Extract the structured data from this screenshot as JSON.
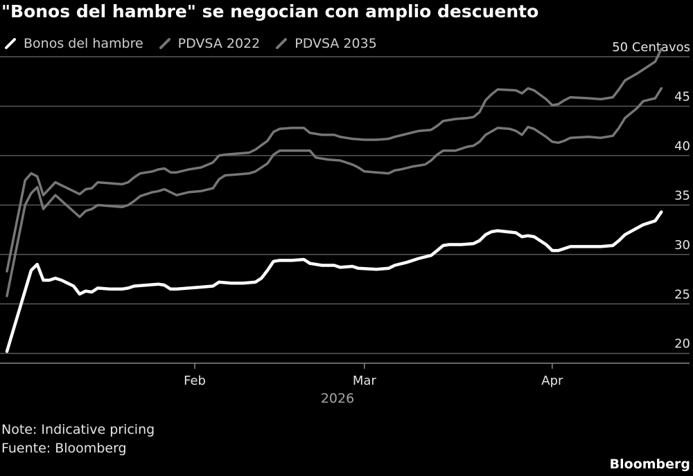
{
  "title": "\"Bonos del hambre\" se negocian con amplio descuento",
  "legend": [
    {
      "label": "Bonos del hambre",
      "color": "#ffffff"
    },
    {
      "label": "PDVSA 2022",
      "color": "#777777"
    },
    {
      "label": "PDVSA 2035",
      "color": "#777777"
    }
  ],
  "note": "Note: Indicative pricing",
  "source": "Fuente: Bloomberg",
  "brand": "Bloomberg",
  "chart_data": {
    "type": "line",
    "y_unit_label": "50 Centavos",
    "y_ticks": [
      20,
      25,
      30,
      35,
      40,
      45,
      50
    ],
    "ylim": [
      19,
      50
    ],
    "x_tick_labels": [
      "Feb",
      "Mar",
      "Apr"
    ],
    "x_tick_days": [
      31,
      59,
      90
    ],
    "year_label": "2026",
    "xlim": [
      0,
      109
    ],
    "grid": true,
    "legend_position": "top-left",
    "series": [
      {
        "name": "Bonos del hambre",
        "color": "#ffffff",
        "points": [
          [
            0,
            20.2
          ],
          [
            4,
            28.4
          ],
          [
            5,
            29.0
          ],
          [
            6,
            27.4
          ],
          [
            7,
            27.4
          ],
          [
            8,
            27.6
          ],
          [
            9,
            27.4
          ],
          [
            10,
            27.1
          ],
          [
            11,
            26.8
          ],
          [
            12,
            26.0
          ],
          [
            13,
            26.3
          ],
          [
            14,
            26.2
          ],
          [
            15,
            26.6
          ],
          [
            17,
            26.5
          ],
          [
            19,
            26.5
          ],
          [
            20,
            26.6
          ],
          [
            21,
            26.8
          ],
          [
            23,
            26.9
          ],
          [
            25,
            27.0
          ],
          [
            26,
            26.9
          ],
          [
            27,
            26.5
          ],
          [
            28,
            26.5
          ],
          [
            30,
            26.6
          ],
          [
            32,
            26.7
          ],
          [
            34,
            26.8
          ],
          [
            35,
            27.2
          ],
          [
            37,
            27.1
          ],
          [
            39,
            27.1
          ],
          [
            41,
            27.2
          ],
          [
            42,
            27.6
          ],
          [
            43,
            28.4
          ],
          [
            44,
            29.3
          ],
          [
            45,
            29.4
          ],
          [
            47,
            29.4
          ],
          [
            49,
            29.5
          ],
          [
            50,
            29.1
          ],
          [
            52,
            28.9
          ],
          [
            54,
            28.9
          ],
          [
            55,
            28.7
          ],
          [
            57,
            28.8
          ],
          [
            58,
            28.6
          ],
          [
            61,
            28.5
          ],
          [
            63,
            28.6
          ],
          [
            64,
            28.9
          ],
          [
            66,
            29.2
          ],
          [
            68,
            29.6
          ],
          [
            70,
            29.9
          ],
          [
            71,
            30.4
          ],
          [
            72,
            30.9
          ],
          [
            73,
            31.0
          ],
          [
            75,
            31.0
          ],
          [
            77,
            31.1
          ],
          [
            78,
            31.4
          ],
          [
            79,
            32.0
          ],
          [
            80,
            32.3
          ],
          [
            81,
            32.4
          ],
          [
            84,
            32.2
          ],
          [
            85,
            31.8
          ],
          [
            86,
            31.9
          ],
          [
            87,
            31.8
          ],
          [
            89,
            31.0
          ],
          [
            90,
            30.4
          ],
          [
            91,
            30.4
          ],
          [
            92,
            30.6
          ],
          [
            93,
            30.8
          ],
          [
            96,
            30.8
          ],
          [
            98,
            30.8
          ],
          [
            100,
            30.9
          ],
          [
            101,
            31.4
          ],
          [
            102,
            32.0
          ],
          [
            105,
            33.0
          ],
          [
            107,
            33.4
          ],
          [
            108,
            34.3
          ]
        ]
      },
      {
        "name": "PDVSA 2022",
        "color": "#777777",
        "points": [
          [
            0,
            25.8
          ],
          [
            3,
            35.0
          ],
          [
            4,
            36.2
          ],
          [
            5,
            36.8
          ],
          [
            6,
            34.6
          ],
          [
            8,
            36.0
          ],
          [
            10,
            34.9
          ],
          [
            12,
            33.8
          ],
          [
            13,
            34.4
          ],
          [
            14,
            34.6
          ],
          [
            15,
            35.0
          ],
          [
            17,
            34.9
          ],
          [
            19,
            34.8
          ],
          [
            20,
            35.0
          ],
          [
            21,
            35.4
          ],
          [
            22,
            35.9
          ],
          [
            24,
            36.3
          ],
          [
            25,
            36.4
          ],
          [
            26,
            36.6
          ],
          [
            27,
            36.3
          ],
          [
            28,
            36.0
          ],
          [
            30,
            36.3
          ],
          [
            32,
            36.4
          ],
          [
            34,
            36.7
          ],
          [
            35,
            37.6
          ],
          [
            36,
            38.0
          ],
          [
            38,
            38.1
          ],
          [
            40,
            38.2
          ],
          [
            41,
            38.4
          ],
          [
            43,
            39.2
          ],
          [
            44,
            40.1
          ],
          [
            45,
            40.5
          ],
          [
            47,
            40.5
          ],
          [
            50,
            40.5
          ],
          [
            51,
            39.8
          ],
          [
            53,
            39.6
          ],
          [
            55,
            39.5
          ],
          [
            57,
            39.1
          ],
          [
            58,
            38.8
          ],
          [
            59,
            38.4
          ],
          [
            61,
            38.3
          ],
          [
            63,
            38.2
          ],
          [
            64,
            38.5
          ],
          [
            65,
            38.6
          ],
          [
            67,
            38.9
          ],
          [
            69,
            39.1
          ],
          [
            70,
            39.5
          ],
          [
            71,
            40.1
          ],
          [
            72,
            40.5
          ],
          [
            74,
            40.5
          ],
          [
            76,
            40.9
          ],
          [
            77,
            41.0
          ],
          [
            78,
            41.4
          ],
          [
            79,
            42.1
          ],
          [
            81,
            42.8
          ],
          [
            83,
            42.7
          ],
          [
            84,
            42.5
          ],
          [
            85,
            42.1
          ],
          [
            86,
            42.9
          ],
          [
            87,
            42.7
          ],
          [
            89,
            41.9
          ],
          [
            90,
            41.4
          ],
          [
            91,
            41.3
          ],
          [
            92,
            41.5
          ],
          [
            93,
            41.8
          ],
          [
            96,
            41.9
          ],
          [
            98,
            41.8
          ],
          [
            100,
            42.0
          ],
          [
            101,
            42.8
          ],
          [
            102,
            43.8
          ],
          [
            104,
            44.8
          ],
          [
            105,
            45.5
          ],
          [
            107,
            45.8
          ],
          [
            108,
            46.8
          ]
        ]
      },
      {
        "name": "PDVSA 2035",
        "color": "#777777",
        "points": [
          [
            0,
            28.3
          ],
          [
            3,
            37.5
          ],
          [
            4,
            38.2
          ],
          [
            5,
            37.9
          ],
          [
            6,
            36.0
          ],
          [
            8,
            37.3
          ],
          [
            10,
            36.7
          ],
          [
            12,
            36.1
          ],
          [
            13,
            36.6
          ],
          [
            14,
            36.7
          ],
          [
            15,
            37.3
          ],
          [
            17,
            37.2
          ],
          [
            19,
            37.1
          ],
          [
            20,
            37.3
          ],
          [
            21,
            37.8
          ],
          [
            22,
            38.2
          ],
          [
            24,
            38.4
          ],
          [
            25,
            38.6
          ],
          [
            26,
            38.7
          ],
          [
            27,
            38.3
          ],
          [
            28,
            38.3
          ],
          [
            30,
            38.6
          ],
          [
            32,
            38.8
          ],
          [
            34,
            39.3
          ],
          [
            35,
            40.0
          ],
          [
            36,
            40.1
          ],
          [
            38,
            40.2
          ],
          [
            40,
            40.3
          ],
          [
            41,
            40.6
          ],
          [
            43,
            41.5
          ],
          [
            44,
            42.4
          ],
          [
            45,
            42.7
          ],
          [
            47,
            42.8
          ],
          [
            49,
            42.8
          ],
          [
            50,
            42.3
          ],
          [
            52,
            42.1
          ],
          [
            54,
            42.1
          ],
          [
            55,
            41.9
          ],
          [
            57,
            41.7
          ],
          [
            59,
            41.6
          ],
          [
            61,
            41.6
          ],
          [
            63,
            41.7
          ],
          [
            64,
            41.9
          ],
          [
            66,
            42.2
          ],
          [
            68,
            42.5
          ],
          [
            70,
            42.6
          ],
          [
            71,
            43.0
          ],
          [
            72,
            43.5
          ],
          [
            74,
            43.7
          ],
          [
            76,
            43.8
          ],
          [
            77,
            43.9
          ],
          [
            78,
            44.4
          ],
          [
            79,
            45.6
          ],
          [
            80,
            46.2
          ],
          [
            81,
            46.7
          ],
          [
            84,
            46.6
          ],
          [
            85,
            46.3
          ],
          [
            86,
            46.8
          ],
          [
            87,
            46.6
          ],
          [
            89,
            45.7
          ],
          [
            90,
            45.1
          ],
          [
            91,
            45.2
          ],
          [
            92,
            45.6
          ],
          [
            93,
            45.9
          ],
          [
            96,
            45.8
          ],
          [
            98,
            45.7
          ],
          [
            100,
            45.9
          ],
          [
            101,
            46.7
          ],
          [
            102,
            47.6
          ],
          [
            104,
            48.3
          ],
          [
            105,
            48.7
          ],
          [
            107,
            49.5
          ],
          [
            108,
            50.8
          ]
        ]
      }
    ]
  }
}
